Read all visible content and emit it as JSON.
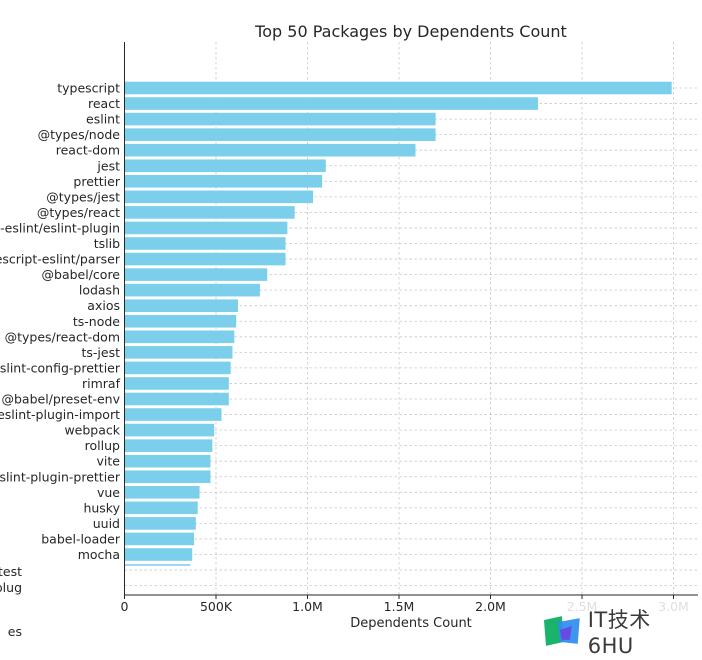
{
  "chart_data": {
    "type": "bar",
    "orientation": "horizontal",
    "title": "Top 50 Packages by Dependents Count",
    "xlabel": "Dependents Count",
    "ylabel": "",
    "xlim": [
      0,
      3000000
    ],
    "x_ticks": [
      {
        "value": 0,
        "label": "0"
      },
      {
        "value": 500000,
        "label": "500K"
      },
      {
        "value": 1000000,
        "label": "1.0M"
      },
      {
        "value": 1500000,
        "label": "1.5M"
      },
      {
        "value": 2000000,
        "label": "2.0M"
      },
      {
        "value": 2500000,
        "label": "2.5M"
      },
      {
        "value": 3000000,
        "label": "3.0M"
      }
    ],
    "grid": true,
    "bar_color": "#7ccfea",
    "categories": [
      "typescript",
      "react",
      "eslint",
      "@types/node",
      "react-dom",
      "jest",
      "prettier",
      "@types/jest",
      "@types/react",
      "@typescript-eslint/eslint-plugin",
      "tslib",
      "@typescript-eslint/parser",
      "@babel/core",
      "lodash",
      "axios",
      "ts-node",
      "@types/react-dom",
      "ts-jest",
      "eslint-config-prettier",
      "rimraf",
      "@babel/preset-env",
      "eslint-plugin-import",
      "webpack",
      "rollup",
      "vite",
      "eslint-plugin-prettier",
      "vue",
      "husky",
      "uuid",
      "babel-loader",
      "mocha"
    ],
    "values": [
      2990000,
      2260000,
      1700000,
      1700000,
      1590000,
      1100000,
      1080000,
      1030000,
      930000,
      890000,
      880000,
      880000,
      780000,
      740000,
      620000,
      610000,
      600000,
      590000,
      580000,
      570000,
      570000,
      530000,
      490000,
      480000,
      470000,
      470000,
      410000,
      400000,
      390000,
      380000,
      370000
    ],
    "partial_labels": [
      "test",
      "plug",
      "es"
    ]
  },
  "watermark": {
    "text": "IT技术6HU",
    "icon": "it-tech-logo"
  }
}
